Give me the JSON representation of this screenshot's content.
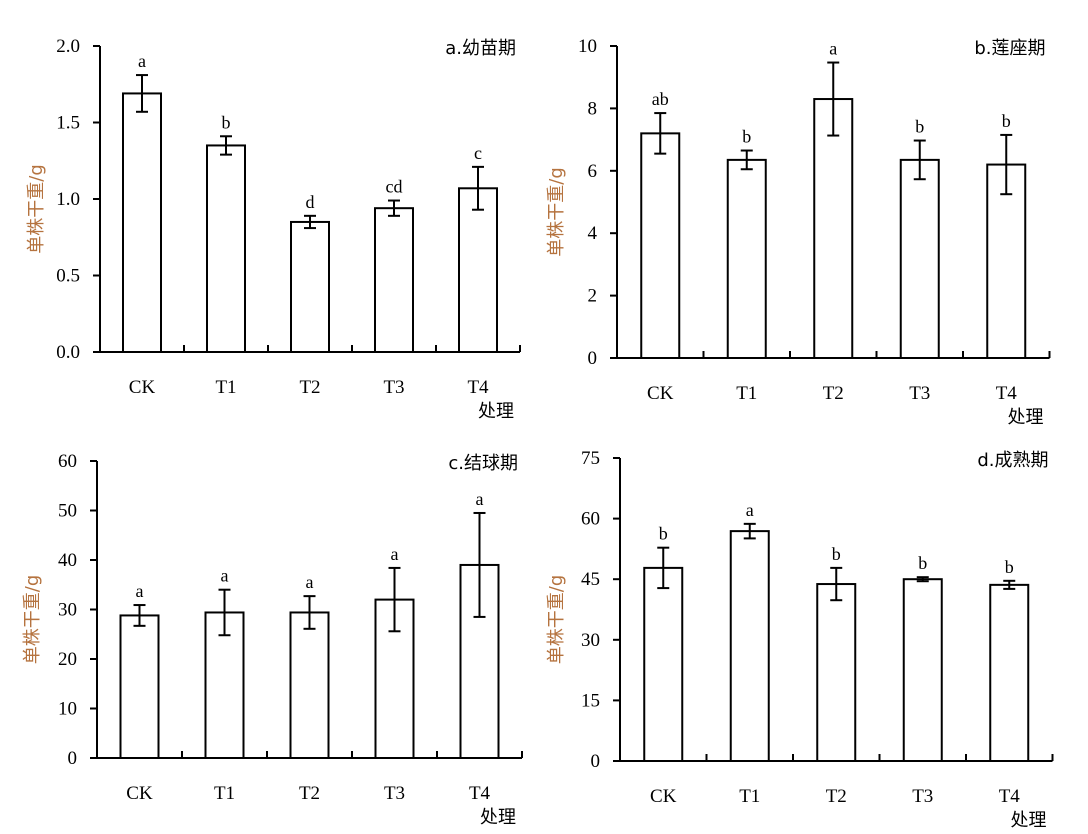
{
  "chart_data": [
    {
      "type": "bar",
      "title": "a.幼苗期",
      "xlabel": "处理",
      "ylabel": "单株干重/g",
      "categories": [
        "CK",
        "T1",
        "T2",
        "T3",
        "T4"
      ],
      "values": [
        1.69,
        1.35,
        0.85,
        0.94,
        1.07
      ],
      "errors": [
        0.12,
        0.06,
        0.04,
        0.05,
        0.14
      ],
      "significance": [
        "a",
        "b",
        "d",
        "cd",
        "c"
      ],
      "ylim": [
        0,
        2.0
      ],
      "yticks": [
        "0.0",
        "0.5",
        "1.0",
        "1.5",
        "2.0"
      ],
      "grid": false
    },
    {
      "type": "bar",
      "title": "b.莲座期",
      "xlabel": "处理",
      "ylabel": "单株干重/g",
      "categories": [
        "CK",
        "T1",
        "T2",
        "T3",
        "T4"
      ],
      "values": [
        7.2,
        6.35,
        8.3,
        6.35,
        6.2
      ],
      "errors": [
        0.65,
        0.3,
        1.17,
        0.62,
        0.95
      ],
      "significance": [
        "ab",
        "b",
        "a",
        "b",
        "b"
      ],
      "ylim": [
        0,
        10
      ],
      "yticks": [
        "0",
        "2",
        "4",
        "6",
        "8",
        "10"
      ],
      "grid": false
    },
    {
      "type": "bar",
      "title": "c.结球期",
      "xlabel": "处理",
      "ylabel": "单株干重/g",
      "categories": [
        "CK",
        "T1",
        "T2",
        "T3",
        "T4"
      ],
      "values": [
        28.8,
        29.4,
        29.4,
        32.0,
        39.0
      ],
      "errors": [
        2.1,
        4.6,
        3.3,
        6.4,
        10.5
      ],
      "significance": [
        "a",
        "a",
        "a",
        "a",
        "a"
      ],
      "ylim": [
        0,
        60
      ],
      "yticks": [
        "0",
        "10",
        "20",
        "30",
        "40",
        "50",
        "60"
      ],
      "grid": false
    },
    {
      "type": "bar",
      "title": "d.成熟期",
      "xlabel": "处理",
      "ylabel": "单株干重/g",
      "categories": [
        "CK",
        "T1",
        "T2",
        "T3",
        "T4"
      ],
      "values": [
        47.8,
        56.9,
        43.8,
        45.0,
        43.6
      ],
      "errors": [
        5.0,
        1.8,
        4.0,
        0.5,
        1.0
      ],
      "significance": [
        "b",
        "a",
        "b",
        "b",
        "b"
      ],
      "ylim": [
        0,
        75
      ],
      "yticks": [
        "0",
        "15",
        "30",
        "45",
        "60",
        "75"
      ],
      "grid": false
    }
  ]
}
